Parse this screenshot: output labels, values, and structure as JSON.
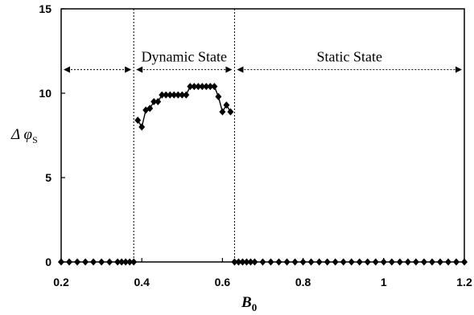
{
  "chart_data": {
    "type": "scatter",
    "xlabel_main": "B",
    "xlabel_sub": "0",
    "ylabel_main": "Δ φ",
    "ylabel_sub": "S",
    "xlim": [
      0.2,
      1.2
    ],
    "ylim": [
      0,
      15
    ],
    "x_ticks": [
      0.2,
      0.4,
      0.6,
      0.8,
      1,
      1.2
    ],
    "x_tick_labels": [
      "0.2",
      "0.4",
      "0.6",
      "0.8",
      "1",
      "1.2"
    ],
    "y_ticks": [
      0,
      5,
      10,
      15
    ],
    "y_tick_labels": [
      "0",
      "5",
      "10",
      "15"
    ],
    "grid": false,
    "regions": [
      {
        "label": "",
        "from": 0.2,
        "to": 0.38
      },
      {
        "label": "Dynamic State",
        "from": 0.38,
        "to": 0.63
      },
      {
        "label": "Static State",
        "from": 0.63,
        "to": 1.2
      }
    ],
    "region_arrow_y": 11.4,
    "boundaries": [
      0.38,
      0.63
    ],
    "series": [
      {
        "x": [
          0.2,
          0.22,
          0.24,
          0.26,
          0.28,
          0.3,
          0.32,
          0.34,
          0.35,
          0.36,
          0.37,
          0.38,
          0.39,
          0.4,
          0.41,
          0.42,
          0.43,
          0.44,
          0.45,
          0.46,
          0.47,
          0.48,
          0.49,
          0.5,
          0.51,
          0.52,
          0.53,
          0.54,
          0.55,
          0.56,
          0.57,
          0.58,
          0.59,
          0.6,
          0.61,
          0.62,
          0.63,
          0.64,
          0.65,
          0.66,
          0.67,
          0.68,
          0.7,
          0.72,
          0.74,
          0.76,
          0.78,
          0.8,
          0.82,
          0.84,
          0.86,
          0.88,
          0.9,
          0.92,
          0.94,
          0.96,
          0.98,
          1.0,
          1.02,
          1.04,
          1.06,
          1.08,
          1.1,
          1.12,
          1.14,
          1.16,
          1.18,
          1.2
        ],
        "y": [
          0,
          0,
          0,
          0,
          0,
          0,
          0,
          0,
          0,
          0,
          0,
          0,
          8.4,
          8.0,
          9.0,
          9.1,
          9.5,
          9.5,
          9.9,
          9.9,
          9.9,
          9.9,
          9.9,
          9.9,
          9.9,
          10.4,
          10.4,
          10.4,
          10.4,
          10.4,
          10.4,
          10.4,
          9.8,
          8.9,
          9.3,
          8.9,
          0,
          0,
          0,
          0,
          0,
          0,
          0,
          0,
          0,
          0,
          0,
          0,
          0,
          0,
          0,
          0,
          0,
          0,
          0,
          0,
          0,
          0,
          0,
          0,
          0,
          0,
          0,
          0,
          0,
          0,
          0,
          0
        ]
      }
    ],
    "line_segment": {
      "x": [
        0.39,
        0.4,
        0.41,
        0.42,
        0.43,
        0.44,
        0.45,
        0.46,
        0.47,
        0.48,
        0.49,
        0.5,
        0.51,
        0.52,
        0.53,
        0.54,
        0.55,
        0.56,
        0.57,
        0.58,
        0.59,
        0.6,
        0.61,
        0.62
      ],
      "y": [
        8.4,
        8.0,
        9.0,
        9.1,
        9.5,
        9.5,
        9.9,
        9.9,
        9.9,
        9.9,
        9.9,
        9.9,
        9.9,
        10.4,
        10.4,
        10.4,
        10.4,
        10.4,
        10.4,
        10.4,
        9.8,
        8.9,
        9.3,
        8.9
      ]
    }
  }
}
